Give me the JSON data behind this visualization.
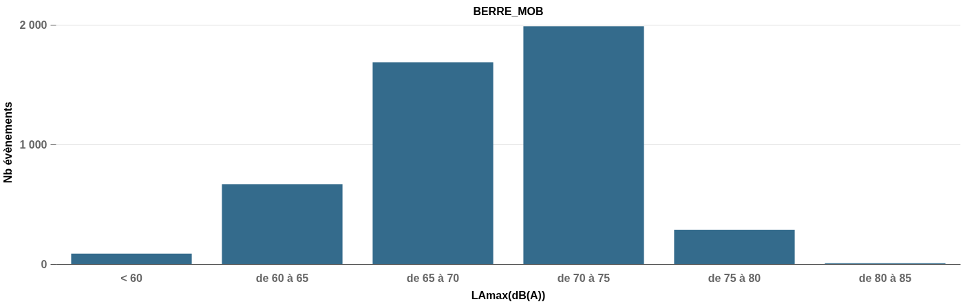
{
  "chart_data": {
    "type": "bar",
    "title": "BERRE_MOB",
    "xlabel": "LAmax(dB(A))",
    "ylabel": "Nb évènements",
    "categories": [
      "< 60",
      "de 60 à 65",
      "de 65 à 70",
      "de 70 à 75",
      "de 75 à 80",
      "de 80 à 85"
    ],
    "values": [
      90,
      670,
      1690,
      1990,
      290,
      10
    ],
    "color": "#346b8c",
    "ylim": [
      0,
      2000
    ],
    "yticks": [
      {
        "value": 0,
        "label": "0"
      },
      {
        "value": 1000,
        "label": "1 000"
      },
      {
        "value": 2000,
        "label": "2 000"
      }
    ],
    "grid": "y"
  }
}
